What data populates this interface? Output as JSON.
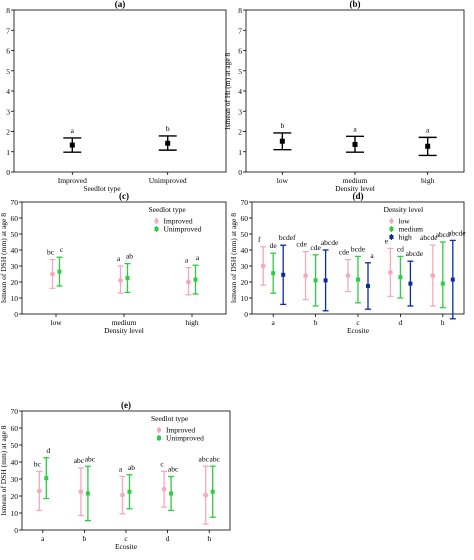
{
  "colors": {
    "improved": "#f5a9bd",
    "unimproved": "#2ecc40",
    "low": "#f5a9bd",
    "medium": "#2ecc40",
    "high": "#0b2aa8",
    "black": "#000000"
  },
  "chart_data": [
    {
      "panel": "(a)",
      "type": "scatter",
      "error_bars": true,
      "title": "(a)",
      "ylabel": "lsmean of Ht (m) at age 8",
      "xlabel": "Seedlot type",
      "ylim": [
        0,
        8
      ],
      "yticks": [
        "0",
        "1",
        "2",
        "3",
        "4",
        "5",
        "6",
        "7",
        "8"
      ],
      "categories": [
        "Improved",
        "Unimproved"
      ],
      "series": [
        {
          "color": "black",
          "values": [
            1.33,
            1.42
          ],
          "lower": [
            0.98,
            1.08
          ],
          "upper": [
            1.68,
            1.78
          ],
          "letters": [
            "a",
            "b"
          ]
        }
      ]
    },
    {
      "panel": "(b)",
      "type": "scatter",
      "error_bars": true,
      "title": "(b)",
      "ylabel": "lsmean of Ht (m) at age 8",
      "xlabel": "Density level",
      "ylim": [
        0,
        8
      ],
      "yticks": [
        "0",
        "1",
        "2",
        "3",
        "4",
        "5",
        "6",
        "7",
        "8"
      ],
      "categories": [
        "low",
        "medium",
        "high"
      ],
      "series": [
        {
          "color": "black",
          "values": [
            1.52,
            1.36,
            1.27
          ],
          "lower": [
            1.1,
            0.98,
            0.82
          ],
          "upper": [
            1.93,
            1.76,
            1.71
          ],
          "letters": [
            "b",
            "a",
            "a"
          ]
        }
      ]
    },
    {
      "panel": "(c)",
      "type": "scatter",
      "error_bars": true,
      "title": "(c)",
      "ylabel": "lsmean of DSH (mm) at age 8",
      "xlabel": "Density level",
      "ylim": [
        0,
        70
      ],
      "yticks": [
        "0",
        "10",
        "20",
        "30",
        "40",
        "50",
        "60",
        "70"
      ],
      "categories": [
        "low",
        "medium",
        "high"
      ],
      "legend": {
        "title": "Seedlot type",
        "position": "top-right"
      },
      "series": [
        {
          "name": "Improved",
          "color": "improved",
          "values": [
            25,
            21,
            20
          ],
          "lower": [
            16,
            13,
            12
          ],
          "upper": [
            34,
            30,
            29
          ],
          "letters": [
            "bc",
            "a",
            "a"
          ]
        },
        {
          "name": "Unimproved",
          "color": "unimproved",
          "values": [
            26.5,
            22.5,
            21.5
          ],
          "lower": [
            17.5,
            13.5,
            12.5
          ],
          "upper": [
            35.5,
            31.5,
            30.5
          ],
          "letters": [
            "c",
            "ab",
            "a"
          ]
        }
      ]
    },
    {
      "panel": "(d)",
      "type": "scatter",
      "error_bars": true,
      "title": "(d)",
      "ylabel": "lsmean of DSH (mm) at age 8",
      "xlabel": "Ecosite",
      "ylim": [
        0,
        70
      ],
      "yticks": [
        "0",
        "10",
        "20",
        "30",
        "40",
        "50",
        "60",
        "70"
      ],
      "categories": [
        "a",
        "b",
        "c",
        "d",
        "h"
      ],
      "legend": {
        "title": "Density level",
        "position": "top-right"
      },
      "series": [
        {
          "name": "low",
          "color": "low",
          "values": [
            30,
            24,
            24,
            26,
            24
          ],
          "lower": [
            18,
            9,
            14,
            11,
            5
          ],
          "upper": [
            42,
            39,
            34,
            41,
            43
          ],
          "letters": [
            "f",
            "cde",
            "cde",
            "e",
            "abcde"
          ]
        },
        {
          "name": "medium",
          "color": "medium",
          "values": [
            25.5,
            21,
            21.5,
            23,
            19
          ],
          "lower": [
            13,
            5,
            7,
            10,
            4
          ],
          "upper": [
            38,
            37,
            36,
            36,
            45
          ],
          "letters": [
            "de",
            "cde",
            "bcde",
            "cd",
            "abcd"
          ]
        },
        {
          "name": "high",
          "color": "high",
          "values": [
            24.5,
            21,
            17.5,
            19,
            21.5
          ],
          "lower": [
            6,
            2,
            3,
            5,
            -3
          ],
          "upper": [
            43,
            40,
            32,
            33,
            46
          ],
          "letters": [
            "bcdef",
            "abcde",
            "a",
            "abcde",
            "abcde"
          ]
        }
      ]
    },
    {
      "panel": "(e)",
      "type": "scatter",
      "error_bars": true,
      "title": "(e)",
      "ylabel": "lsmean of DSH (mm) at age 8",
      "xlabel": "Ecosite",
      "ylim": [
        0,
        70
      ],
      "yticks": [
        "0",
        "10",
        "20",
        "30",
        "40",
        "50",
        "60",
        "70"
      ],
      "categories": [
        "a",
        "b",
        "c",
        "d",
        "h"
      ],
      "legend": {
        "title": "Seedlot type",
        "position": "top-right"
      },
      "series": [
        {
          "name": "Improved",
          "color": "improved",
          "values": [
            23,
            22.5,
            20.5,
            24,
            20.5
          ],
          "lower": [
            11.5,
            8.5,
            9.5,
            13.5,
            3.5
          ],
          "upper": [
            34.5,
            36.5,
            31.5,
            34.5,
            37.5
          ],
          "letters": [
            "bc",
            "abc",
            "a",
            "c",
            "abc"
          ]
        },
        {
          "name": "Unimproved",
          "color": "unimproved",
          "values": [
            30.5,
            21.5,
            22.5,
            21.5,
            22.5
          ],
          "lower": [
            18.5,
            5.5,
            12.5,
            11.5,
            7.5
          ],
          "upper": [
            42.5,
            37.5,
            32.5,
            31.5,
            37.5
          ],
          "letters": [
            "d",
            "abc",
            "ab",
            "abc",
            "abc"
          ]
        }
      ]
    }
  ]
}
